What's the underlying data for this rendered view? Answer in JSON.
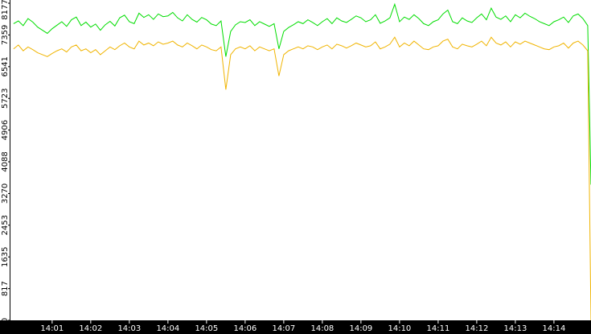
{
  "chart_data": {
    "type": "line",
    "x": [
      840,
      840.125,
      840.25,
      840.375,
      840.5,
      840.625,
      840.75,
      840.875,
      841,
      841.125,
      841.25,
      841.375,
      841.5,
      841.625,
      841.75,
      841.875,
      842,
      842.125,
      842.25,
      842.375,
      842.5,
      842.625,
      842.75,
      842.875,
      843,
      843.125,
      843.25,
      843.375,
      843.5,
      843.625,
      843.75,
      843.875,
      844,
      844.125,
      844.25,
      844.375,
      844.5,
      844.625,
      844.75,
      844.875,
      845,
      845.125,
      845.25,
      845.375,
      845.5,
      845.625,
      845.75,
      845.875,
      846,
      846.125,
      846.25,
      846.375,
      846.5,
      846.625,
      846.75,
      846.875,
      847,
      847.125,
      847.25,
      847.375,
      847.5,
      847.625,
      847.75,
      847.875,
      848,
      848.125,
      848.25,
      848.375,
      848.5,
      848.625,
      848.75,
      848.875,
      849,
      849.125,
      849.25,
      849.375,
      849.5,
      849.625,
      849.75,
      849.875,
      850,
      850.125,
      850.25,
      850.375,
      850.5,
      850.625,
      850.75,
      850.875,
      851,
      851.125,
      851.25,
      851.375,
      851.5,
      851.625,
      851.75,
      851.875,
      852,
      852.125,
      852.25,
      852.375,
      852.5,
      852.625,
      852.75,
      852.875,
      853,
      853.125,
      853.25,
      853.375,
      853.5,
      853.625,
      853.75,
      853.875,
      854,
      854.125,
      854.25,
      854.375,
      854.5,
      854.625,
      854.75,
      854.875,
      854.96
    ],
    "series": [
      {
        "color": "#00dd00",
        "values": [
          7650,
          7720,
          7600,
          7780,
          7690,
          7560,
          7480,
          7400,
          7520,
          7610,
          7700,
          7580,
          7750,
          7820,
          7600,
          7690,
          7560,
          7640,
          7480,
          7620,
          7710,
          7590,
          7800,
          7870,
          7700,
          7650,
          7920,
          7810,
          7880,
          7760,
          7900,
          7830,
          7850,
          7940,
          7800,
          7720,
          7880,
          7760,
          7690,
          7810,
          7750,
          7640,
          7600,
          7720,
          6800,
          7450,
          7620,
          7700,
          7680,
          7750,
          7600,
          7700,
          7640,
          7580,
          7650,
          7000,
          7450,
          7550,
          7620,
          7700,
          7650,
          7750,
          7680,
          7600,
          7700,
          7780,
          7650,
          7800,
          7720,
          7680,
          7760,
          7850,
          7800,
          7700,
          7750,
          7880,
          7660,
          7720,
          7800,
          8150,
          7700,
          7820,
          7760,
          7880,
          7780,
          7650,
          7600,
          7700,
          7750,
          7900,
          8000,
          7700,
          7650,
          7800,
          7720,
          7680,
          7800,
          7900,
          7750,
          8050,
          7820,
          7760,
          7850,
          7700,
          7880,
          7800,
          7920,
          7840,
          7780,
          7700,
          7650,
          7600,
          7700,
          7750,
          7820,
          7680,
          7850,
          7900,
          7780,
          7600,
          3500
        ]
      },
      {
        "color": "#f0b400",
        "values": [
          7000,
          7100,
          6950,
          7050,
          6980,
          6900,
          6850,
          6800,
          6880,
          6950,
          7000,
          6920,
          7050,
          7100,
          6950,
          7000,
          6900,
          6980,
          6850,
          6950,
          7050,
          6980,
          7080,
          7150,
          7050,
          7000,
          7200,
          7100,
          7150,
          7080,
          7180,
          7120,
          7150,
          7200,
          7100,
          7050,
          7150,
          7080,
          7000,
          7100,
          7050,
          6980,
          6950,
          7050,
          5950,
          6850,
          7000,
          7050,
          7000,
          7080,
          6950,
          7050,
          7000,
          6950,
          7000,
          6300,
          6850,
          6950,
          7000,
          7050,
          7000,
          7080,
          7050,
          6980,
          7050,
          7100,
          7000,
          7120,
          7080,
          7020,
          7080,
          7150,
          7100,
          7050,
          7080,
          7180,
          7000,
          7050,
          7120,
          7300,
          7050,
          7150,
          7080,
          7200,
          7100,
          7000,
          6980,
          7050,
          7080,
          7200,
          7250,
          7050,
          7000,
          7120,
          7080,
          7050,
          7120,
          7200,
          7080,
          7300,
          7150,
          7100,
          7180,
          7050,
          7180,
          7120,
          7200,
          7150,
          7100,
          7050,
          7000,
          6980,
          7050,
          7080,
          7150,
          7020,
          7150,
          7200,
          7100,
          6950,
          0
        ]
      }
    ],
    "xlim": [
      839.92,
      854.96
    ],
    "xticks": [
      {
        "value": 841,
        "label": "14:01"
      },
      {
        "value": 842,
        "label": "14:02"
      },
      {
        "value": 843,
        "label": "14:03"
      },
      {
        "value": 844,
        "label": "14:04"
      },
      {
        "value": 845,
        "label": "14:05"
      },
      {
        "value": 846,
        "label": "14:06"
      },
      {
        "value": 847,
        "label": "14:07"
      },
      {
        "value": 848,
        "label": "14:08"
      },
      {
        "value": 849,
        "label": "14:09"
      },
      {
        "value": 850,
        "label": "14:10"
      },
      {
        "value": 851,
        "label": "14:11"
      },
      {
        "value": 852,
        "label": "14:12"
      },
      {
        "value": 853,
        "label": "14:13"
      },
      {
        "value": 854,
        "label": "14:14"
      }
    ],
    "ylim": [
      0,
      8177
    ],
    "yticks": [
      0,
      817,
      1635,
      2453,
      3270,
      4088,
      4906,
      5723,
      6541,
      7359,
      8177
    ]
  }
}
